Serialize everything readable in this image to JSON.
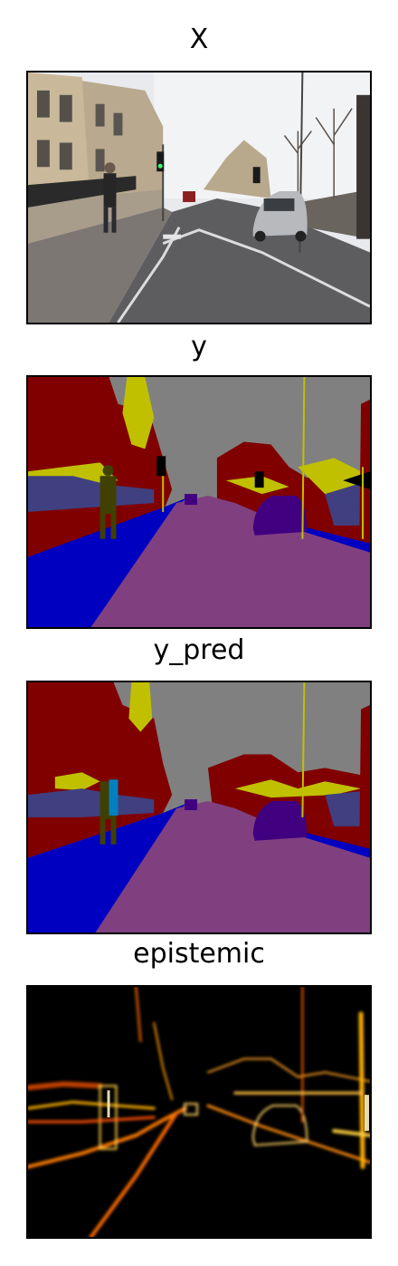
{
  "panels": [
    {
      "title": "X",
      "kind": "photo"
    },
    {
      "title": "y",
      "kind": "ground-truth-segmentation"
    },
    {
      "title": "y_pred",
      "kind": "predicted-segmentation"
    },
    {
      "title": "epistemic",
      "kind": "uncertainty-heatmap"
    }
  ],
  "colors": {
    "sky": "#808080",
    "building": "#800000",
    "road": "#804080",
    "sidewalk": "#0000c0",
    "tree": "#c0c000",
    "fence": "#404080",
    "pedestrian": "#404000",
    "car": "#400080",
    "signal": "#000000",
    "bicyclist": "#0080c0"
  }
}
